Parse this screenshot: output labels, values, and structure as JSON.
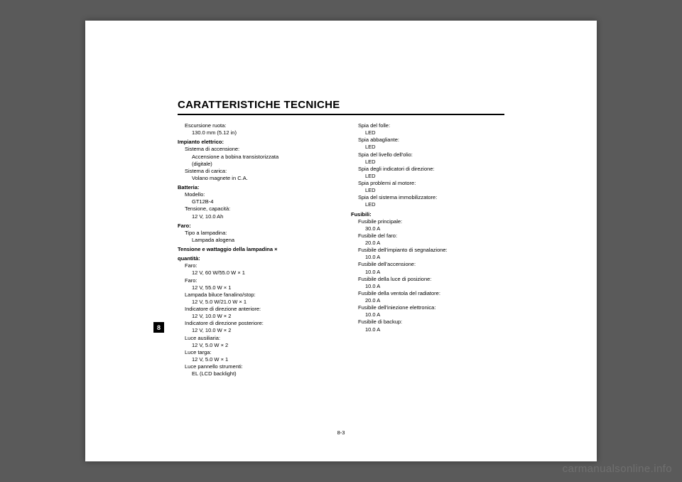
{
  "page": {
    "title": "CARATTERISTICHE TECNICHE",
    "section_number": "8",
    "page_number": "8-3",
    "watermark": "carmanualsonline.info"
  },
  "col1": {
    "r0_sub": "Escursione ruota:",
    "r0_val": "130.0 mm (5.12 in)",
    "s1": "Impianto elettrico:",
    "r1a_sub": "Sistema di accensione:",
    "r1a_val1": "Accensione a bobina transistorizzata",
    "r1a_val2": "(digitale)",
    "r1b_sub": "Sistema di carica:",
    "r1b_val": "Volano magnete in C.A.",
    "s2": "Batteria:",
    "r2a_sub": "Modello:",
    "r2a_val": "GT12B-4",
    "r2b_sub": "Tensione, capacità:",
    "r2b_val": "12 V, 10.0 Ah",
    "s3": "Faro:",
    "r3a_sub": "Tipo a lampadina:",
    "r3a_val": "Lampada alogena",
    "s4a": "Tensione e wattaggio della lampadina ×",
    "s4b": "quantità:",
    "r4a_sub": "Faro:",
    "r4a_val": "12 V, 60 W/55.0 W × 1",
    "r4b_sub": "Faro:",
    "r4b_val": "12 V, 55.0 W × 1",
    "r4c_sub": "Lampada biluce fanalino/stop:",
    "r4c_val": "12 V, 5.0 W/21.0 W × 1",
    "r4d_sub": "Indicatore di direzione anteriore:",
    "r4d_val": "12 V, 10.0 W × 2",
    "r4e_sub": "Indicatore di direzione posteriore:",
    "r4e_val": "12 V, 10.0 W × 2",
    "r4f_sub": "Luce ausiliaria:",
    "r4f_val": "12 V, 5.0 W × 2",
    "r4g_sub": "Luce targa:",
    "r4g_val": "12 V, 5.0 W × 1",
    "r4h_sub": "Luce pannello strumenti:",
    "r4h_val": "EL (LCD backlight)"
  },
  "col2": {
    "r1_sub": "Spia del folle:",
    "r1_val": "LED",
    "r2_sub": "Spia abbagliante:",
    "r2_val": "LED",
    "r3_sub": "Spia del livello dell'olio:",
    "r3_val": "LED",
    "r4_sub": "Spia degli indicatori di direzione:",
    "r4_val": "LED",
    "r5_sub": "Spia problemi al motore:",
    "r5_val": "LED",
    "r6_sub": "Spia del sistema immobilizzatore:",
    "r6_val": "LED",
    "s1": "Fusibili:",
    "f1_sub": "Fusibile principale:",
    "f1_val": "30.0 A",
    "f2_sub": "Fusibile del faro:",
    "f2_val": "20.0 A",
    "f3_sub": "Fusibile dell'impianto di segnalazione:",
    "f3_val": "10.0 A",
    "f4_sub": "Fusibile dell'accensione:",
    "f4_val": "10.0 A",
    "f5_sub": "Fusibile della luce di posizione:",
    "f5_val": "10.0 A",
    "f6_sub": "Fusibile della ventola del radiatore:",
    "f6_val": "20.0 A",
    "f7_sub": "Fusibile dell'iniezione elettronica:",
    "f7_val": "10.0 A",
    "f8_sub": "Fusibile di backup:",
    "f8_val": "10.0 A"
  }
}
